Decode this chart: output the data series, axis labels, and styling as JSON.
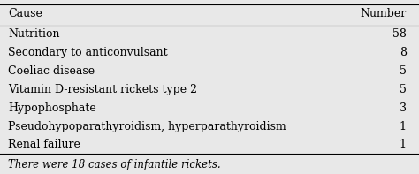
{
  "header": [
    "Cause",
    "Number"
  ],
  "rows": [
    [
      "Nutrition",
      "58"
    ],
    [
      "Secondary to anticonvulsant",
      "8"
    ],
    [
      "Coeliac disease",
      "5"
    ],
    [
      "Vitamin D-resistant rickets type 2",
      "5"
    ],
    [
      "Hypophosphate",
      "3"
    ],
    [
      "Pseudohypoparathyroidism, hyperparathyroidism",
      "1"
    ],
    [
      "Renal failure",
      "1"
    ]
  ],
  "footer": "There were 18 cases of infantile rickets.",
  "bg_color": "#e8e8e8",
  "text_color": "#000000",
  "font_size": 9,
  "header_font_size": 9
}
